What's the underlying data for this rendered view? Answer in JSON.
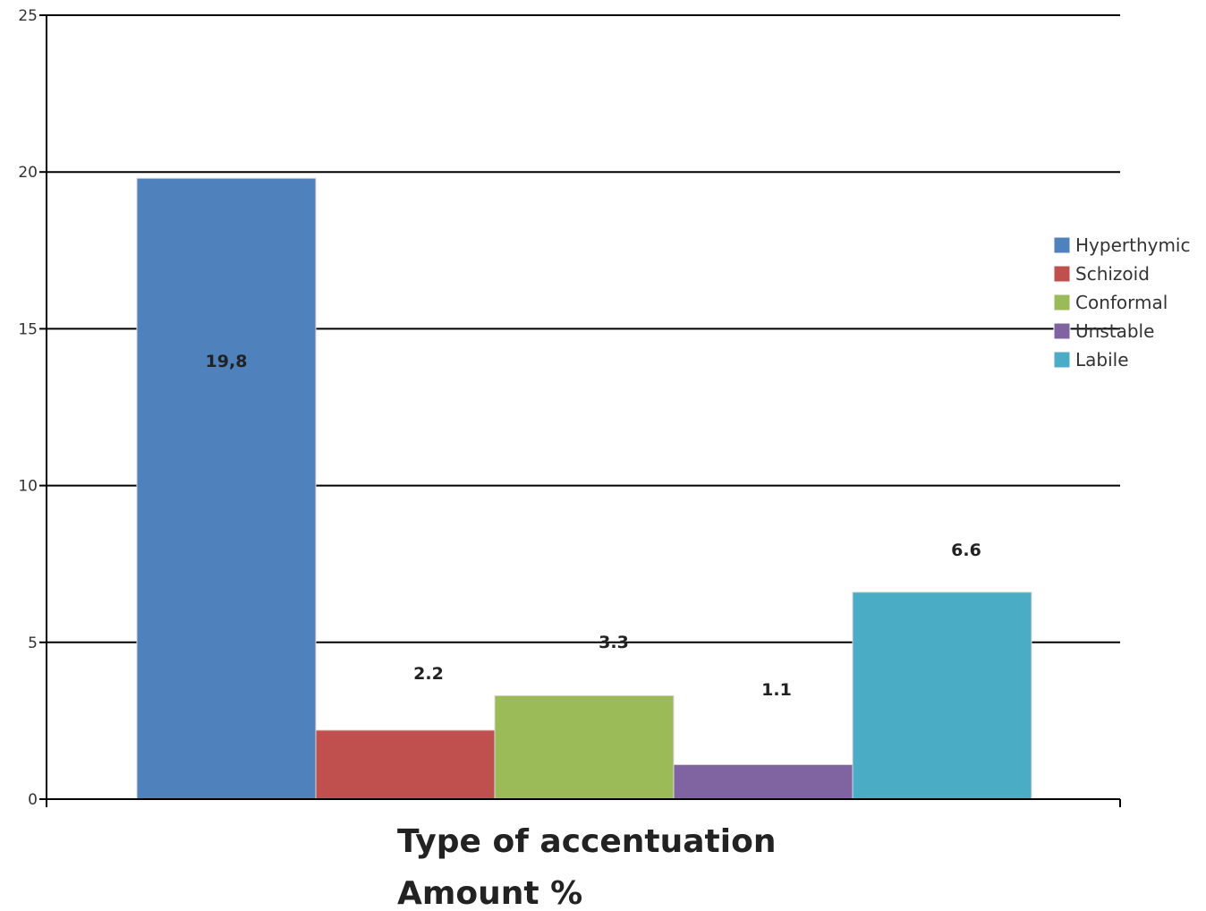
{
  "chart_data": {
    "type": "bar",
    "xlabel": "Type of accentuation",
    "ylabel": "",
    "caption": "Amount %",
    "ylim": [
      0,
      25
    ],
    "yticks": [
      0,
      5,
      10,
      15,
      20,
      25
    ],
    "grid": true,
    "legend_position": "right",
    "series": [
      {
        "name": "Hyperthymic",
        "value": 19.8,
        "label": "19,8",
        "color": "#4f81bd"
      },
      {
        "name": "Schizoid",
        "value": 2.2,
        "label": "2.2",
        "color": "#c0504d"
      },
      {
        "name": "Conformal",
        "value": 3.3,
        "label": "3.3",
        "color": "#9bbb59"
      },
      {
        "name": "Unstable",
        "value": 1.1,
        "label": "1.1",
        "color": "#8064a2"
      },
      {
        "name": "Labile",
        "value": 6.6,
        "label": "6.6",
        "color": "#4bacc6"
      }
    ]
  }
}
